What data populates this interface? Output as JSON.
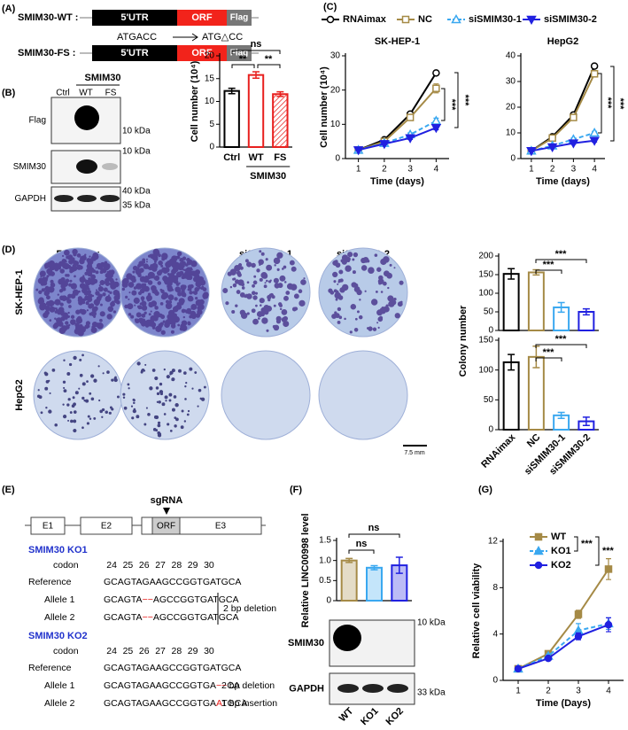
{
  "figure": {
    "panel_labels": [
      "(A)",
      "(B)",
      "(C)",
      "(D)",
      "(E)",
      "(F)",
      "(G)"
    ]
  },
  "panel_a": {
    "wt_label": "SMIM30-WT :",
    "fs_label": "SMIM30-FS :",
    "segments": [
      "5'UTR",
      "ORF",
      "Flag"
    ],
    "from_seq": "ATGACC",
    "to_seq": "ATG△CC"
  },
  "panel_b": {
    "lanes": [
      "Ctrl",
      "WT",
      "FS"
    ],
    "header": "SMIM30",
    "blots": [
      "Flag",
      "SMIM30",
      "GAPDH"
    ],
    "markers": [
      "10 kDa",
      "10 kDa",
      "40 kDa",
      "35 kDa"
    ]
  },
  "panel_d": {
    "conditions": [
      "RNAimax",
      "NC",
      "siSMIM30-1",
      "siSMIM30-2"
    ],
    "cell_lines": [
      "SK-HEP-1",
      "HepG2"
    ],
    "scale_bar": "7.5 mm"
  },
  "panel_e": {
    "exons": [
      "E1",
      "E2",
      "ORF",
      "E3"
    ],
    "guide": "sgRNA",
    "ko1": {
      "title": "SMIM30 KO1",
      "codon_label": "codon",
      "codons": [
        24,
        25,
        26,
        27,
        28,
        29,
        30
      ],
      "rows": [
        {
          "label": "Reference",
          "seq": [
            "GCAGTAGAAGCCGGTGATGCA"
          ]
        },
        {
          "label": "Allele 1",
          "seq": [
            "GCAGTA",
            "−−",
            "AGCCGGTGATGCA"
          ]
        },
        {
          "label": "Allele 2",
          "seq": [
            "GCAGTA",
            "−−",
            "AGCCGGTGATGCA"
          ]
        }
      ],
      "note": "2 bp deletion"
    },
    "ko2": {
      "title": "SMIM30 KO2",
      "codon_label": "codon",
      "codons": [
        24,
        25,
        26,
        27,
        28,
        29,
        30
      ],
      "rows": [
        {
          "label": "Reference",
          "seq": [
            "GCAGTAGAAGCCGGTGATGCA"
          ]
        },
        {
          "label": "Allele 1",
          "seq": [
            "GCAGTAGAAGCCGGTGA",
            "−−",
            "CA"
          ],
          "note": "2 bp deletion"
        },
        {
          "label": "Allele 2",
          "seq": [
            "GCAGTAGAAGCCGGTGA",
            "A",
            "TGCA"
          ],
          "note": "1 bp insertion"
        }
      ]
    }
  },
  "panel_f": {
    "blots": [
      "SMIM30",
      "GAPDH"
    ],
    "markers": [
      "10 kDa",
      "33 kDa"
    ]
  },
  "chart_data": [
    {
      "type": "bar",
      "y_label": "Cell number (10⁴)",
      "categories": [
        "Ctrl",
        "WT",
        "FS"
      ],
      "values": [
        12.3,
        15.8,
        11.6
      ],
      "errors": [
        0.6,
        0.7,
        0.5
      ],
      "colors": [
        "#000000",
        "#e8201e",
        "#e8201e"
      ],
      "patterns": [
        "solid",
        "solid",
        "hatched"
      ],
      "ylim": [
        0,
        20
      ],
      "yticks": [
        0,
        5,
        10,
        15,
        20
      ],
      "group_label": "SMIM30",
      "annotations": [
        "ns",
        "**",
        "**"
      ]
    },
    {
      "type": "line",
      "title": "SK-HEP-1",
      "x_label": "Time (days)",
      "y_label": "Cell number (10⁴)",
      "x": [
        1,
        2,
        3,
        4
      ],
      "xlim": [
        0.5,
        4.5
      ],
      "xticks": [
        1,
        2,
        3,
        4
      ],
      "ylim": [
        0,
        30
      ],
      "yticks": [
        0,
        10,
        20,
        30
      ],
      "legend": "top",
      "series": [
        {
          "name": "RNAimax",
          "color": "#000000",
          "marker": "circle",
          "filled": false,
          "dashed": false,
          "values": [
            2.5,
            5.5,
            13,
            25
          ],
          "errors": [
            0.2,
            0.3,
            0.5,
            0.5
          ]
        },
        {
          "name": "NC",
          "color": "#a58a46",
          "marker": "square",
          "filled": false,
          "dashed": false,
          "values": [
            2.5,
            5,
            12,
            20.5
          ],
          "errors": [
            0.2,
            0.3,
            0.8,
            1.3
          ]
        },
        {
          "name": "siSMIM30-1",
          "color": "#3aa8f0",
          "marker": "triangle",
          "filled": false,
          "dashed": true,
          "values": [
            2.5,
            4.5,
            7,
            11
          ],
          "errors": [
            0.2,
            0.3,
            0.5,
            0.8
          ]
        },
        {
          "name": "siSMIM30-2",
          "color": "#2020e0",
          "marker": "triangle-down",
          "filled": true,
          "dashed": false,
          "values": [
            2.5,
            4.3,
            6,
            9
          ],
          "errors": [
            0.2,
            0.3,
            0.4,
            0.6
          ]
        }
      ],
      "annotations": [
        "***",
        "***"
      ]
    },
    {
      "type": "line",
      "title": "HepG2",
      "x_label": "Time (days)",
      "x": [
        1,
        2,
        3,
        4
      ],
      "xlim": [
        0.5,
        4.5
      ],
      "xticks": [
        1,
        2,
        3,
        4
      ],
      "ylim": [
        0,
        40
      ],
      "yticks": [
        0,
        10,
        20,
        30,
        40
      ],
      "series": [
        {
          "color": "#000000",
          "marker": "circle",
          "filled": false,
          "dashed": false,
          "values": [
            3,
            8.5,
            17,
            36
          ],
          "errors": [
            0.3,
            0.5,
            0.6,
            0.5
          ]
        },
        {
          "color": "#a58a46",
          "marker": "square",
          "filled": false,
          "dashed": false,
          "values": [
            3,
            8,
            16,
            33
          ],
          "errors": [
            0.3,
            0.5,
            0.6,
            1.2
          ]
        },
        {
          "color": "#3aa8f0",
          "marker": "triangle",
          "filled": false,
          "dashed": true,
          "values": [
            3,
            5,
            7.5,
            10
          ],
          "errors": [
            0.3,
            0.4,
            0.5,
            0.6
          ]
        },
        {
          "color": "#2020e0",
          "marker": "triangle-down",
          "filled": true,
          "dashed": false,
          "values": [
            3,
            4.5,
            6,
            7
          ],
          "errors": [
            0.3,
            0.3,
            0.4,
            0.6
          ]
        }
      ],
      "annotations": [
        "***",
        "***"
      ]
    },
    {
      "type": "bar",
      "y_label": "Colony number",
      "values": [
        152,
        156,
        62,
        50
      ],
      "errors": [
        14,
        7,
        13,
        8
      ],
      "colors": [
        "#000000",
        "#a58a46",
        "#3aa8f0",
        "#2020e0"
      ],
      "ylim": [
        0,
        200
      ],
      "yticks": [
        0,
        50,
        100,
        150,
        200
      ],
      "annotations": [
        "***",
        "***"
      ]
    },
    {
      "type": "bar",
      "categories": [
        "RNAimax",
        "NC",
        "siSMIM30-1",
        "siSMIM30-2"
      ],
      "values": [
        113,
        122,
        24,
        14
      ],
      "errors": [
        13,
        18,
        5,
        7
      ],
      "colors": [
        "#000000",
        "#a58a46",
        "#3aa8f0",
        "#2020e0"
      ],
      "ylim": [
        0,
        150
      ],
      "yticks": [
        0,
        50,
        100,
        150
      ],
      "annotations": [
        "***",
        "***"
      ]
    },
    {
      "type": "bar",
      "y_label": "Relative LINC00998 level",
      "categories": [
        "WT",
        "KO1",
        "KO2"
      ],
      "values": [
        1.0,
        0.82,
        0.88
      ],
      "errors": [
        0.05,
        0.05,
        0.2
      ],
      "colors": [
        "#a58a46",
        "#3aa8f0",
        "#2020e0"
      ],
      "ylim": [
        0,
        1.5
      ],
      "yticks": [
        0,
        0.5,
        {
          "value": 1,
          "label": "1.0"
        },
        1.5
      ],
      "annotations": [
        "ns",
        "ns"
      ]
    },
    {
      "type": "line",
      "x_label": "Time (Days)",
      "y_label": "Relative cell viability",
      "x": [
        1,
        2,
        3,
        4
      ],
      "xlim": [
        0.5,
        4.5
      ],
      "xticks": [
        1,
        2,
        3,
        4
      ],
      "ylim": [
        0,
        12
      ],
      "yticks": [
        0,
        4,
        8,
        12
      ],
      "legend": "top-left",
      "series": [
        {
          "name": "WT",
          "color": "#a58a46",
          "marker": "square",
          "filled": true,
          "dashed": false,
          "values": [
            1,
            2.3,
            5.7,
            9.6
          ],
          "errors": [
            0.1,
            0.15,
            0.35,
            0.9
          ]
        },
        {
          "name": "KO1",
          "color": "#3aa8f0",
          "marker": "triangle",
          "filled": true,
          "dashed": true,
          "values": [
            1,
            2.1,
            4.3,
            4.9
          ],
          "errors": [
            0.1,
            0.1,
            0.6,
            0.5
          ]
        },
        {
          "name": "KO2",
          "color": "#2020e0",
          "marker": "circle",
          "filled": true,
          "dashed": false,
          "values": [
            1,
            1.9,
            3.8,
            4.8
          ],
          "errors": [
            0.1,
            0.1,
            0.3,
            0.6
          ]
        }
      ],
      "annotations": [
        "***",
        "***"
      ]
    }
  ]
}
